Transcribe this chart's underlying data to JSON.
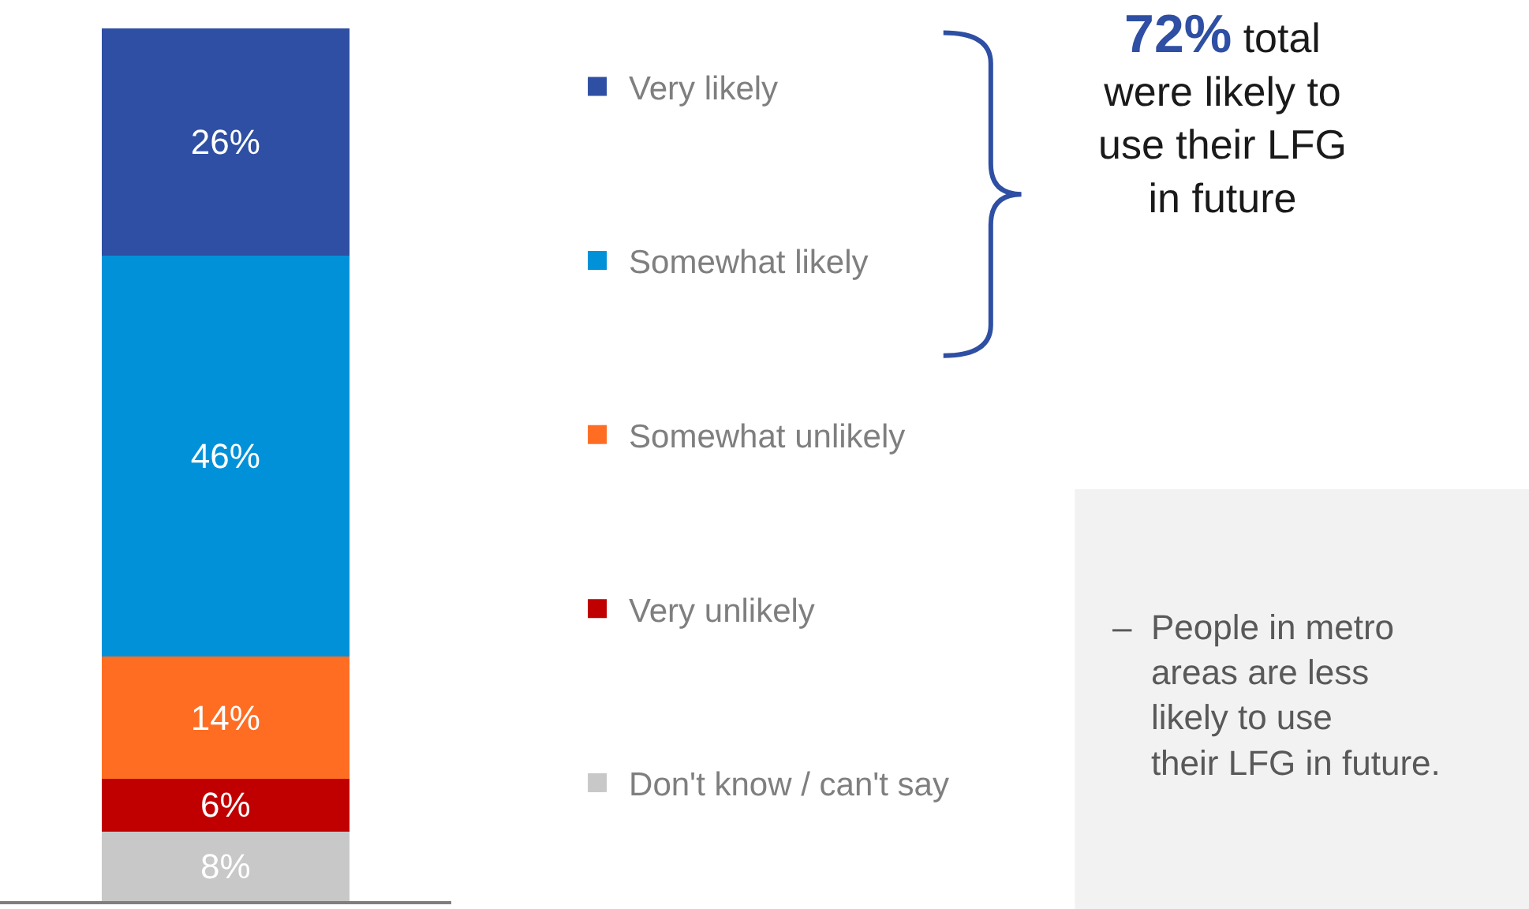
{
  "chart_data": {
    "type": "bar",
    "stacked": true,
    "categories": [
      null
    ],
    "ylim": [
      0,
      100
    ],
    "tick_labels": false,
    "legend": "right",
    "series": [
      {
        "name": "Don't know / can't say",
        "color": "#c8c8c8",
        "values": [
          8
        ],
        "value_labels": [
          "8%"
        ]
      },
      {
        "name": "Very unlikely",
        "color": "#c00000",
        "values": [
          6
        ],
        "value_labels": [
          "6%"
        ]
      },
      {
        "name": "Somewhat unlikely",
        "color": "#ff6d23",
        "values": [
          14
        ],
        "value_labels": [
          "14%"
        ]
      },
      {
        "name": "Somewhat likely",
        "color": "#0091d9",
        "values": [
          46
        ],
        "value_labels": [
          "46%"
        ]
      },
      {
        "name": "Very likely",
        "color": "#2e4fa3",
        "values": [
          26
        ],
        "value_labels": [
          "26%"
        ]
      }
    ],
    "annotations": [
      "72% total were likely to use their LFG in future",
      "– People in metro areas are less likely to use their LFG in future."
    ]
  }
}
